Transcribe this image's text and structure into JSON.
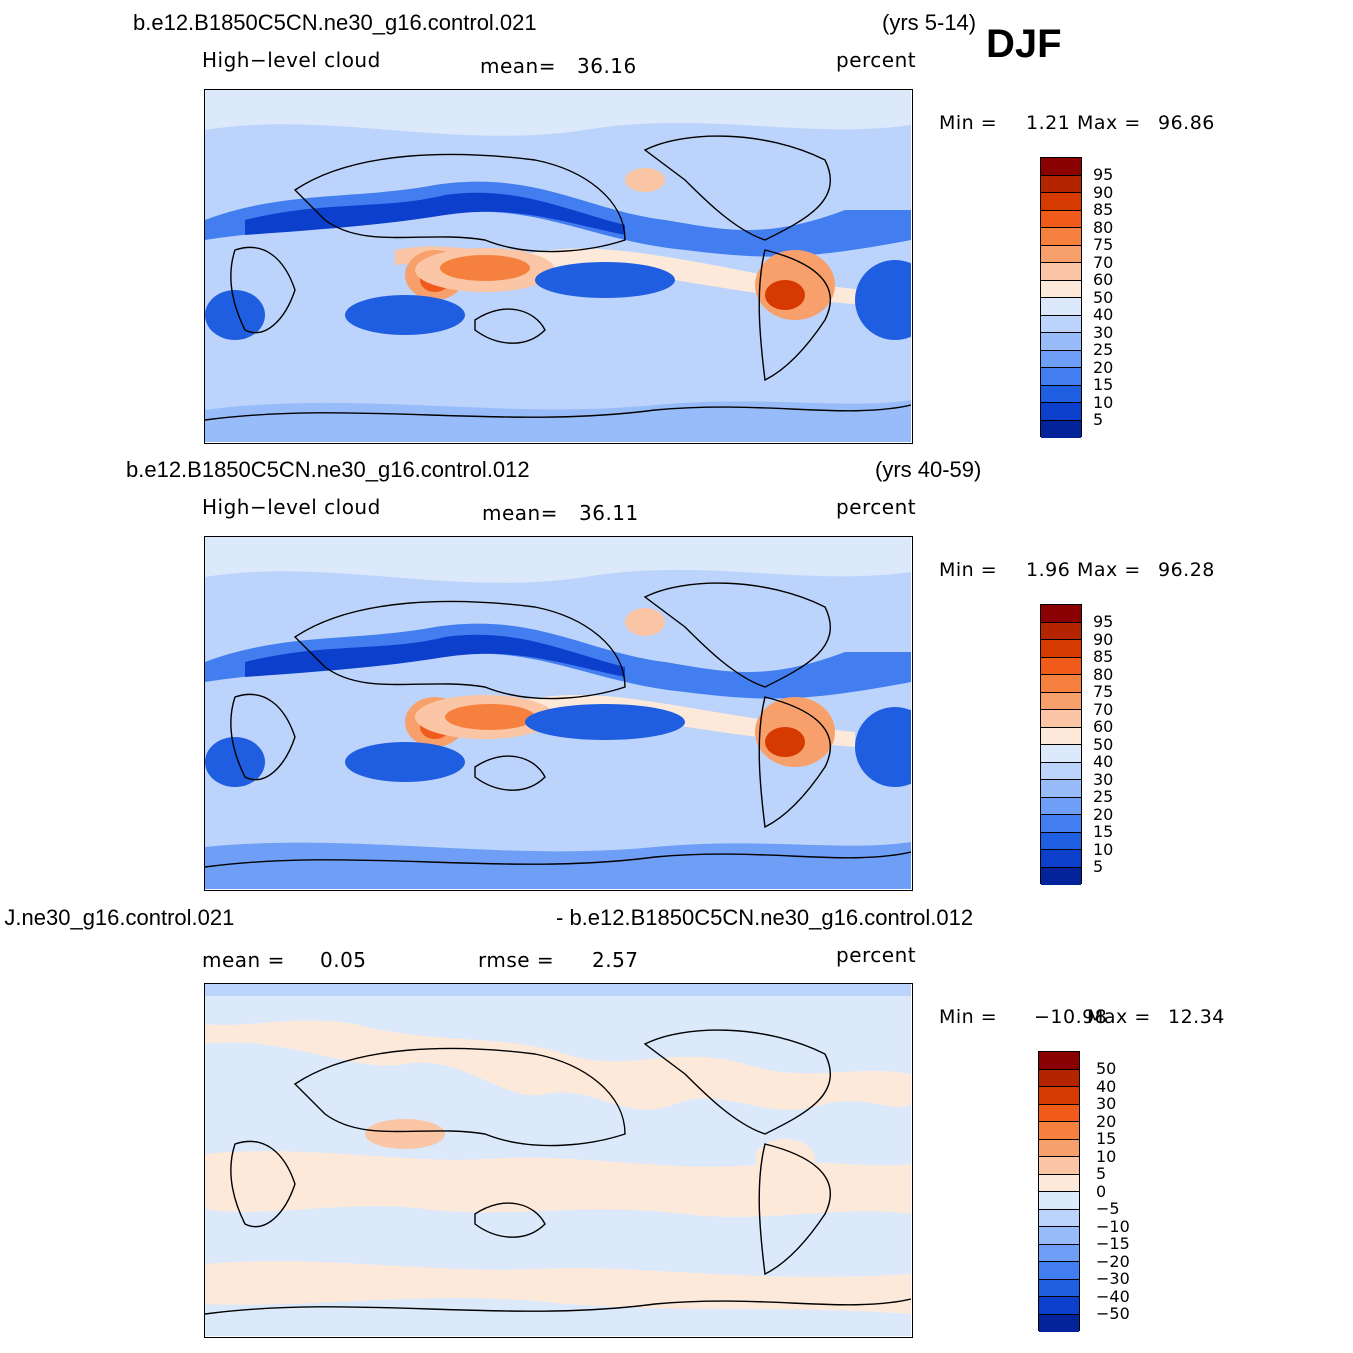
{
  "season": "DJF",
  "panels": [
    {
      "case_left": "b.e12.B1850C5CN.ne30_g16.control.021",
      "case_right": "(yrs 5-14)",
      "variable": "High−level  cloud",
      "stat1_label": "mean=",
      "stat1_value": "36.16",
      "stat2_label": "",
      "stat2_value": "",
      "units": "percent",
      "min_label": "Min  =",
      "min_value": "1.21",
      "max_label": "Max  =",
      "max_value": "96.86",
      "levels": [
        "95",
        "90",
        "85",
        "80",
        "75",
        "70",
        "60",
        "50",
        "40",
        "30",
        "25",
        "20",
        "15",
        "10",
        "5"
      ],
      "colors": [
        "#8b0000",
        "#b52400",
        "#d63a00",
        "#f05a1a",
        "#f6803e",
        "#f8a06c",
        "#fbc6a6",
        "#fde9da",
        "#dce9fb",
        "#bcd4fb",
        "#98bcfa",
        "#6f9ef6",
        "#437ef0",
        "#1f5ee0",
        "#0c3fcc",
        "#03239a"
      ]
    },
    {
      "case_left": "b.e12.B1850C5CN.ne30_g16.control.012",
      "case_right": "(yrs 40-59)",
      "variable": "High−level  cloud",
      "stat1_label": "mean=",
      "stat1_value": "36.11",
      "stat2_label": "",
      "stat2_value": "",
      "units": "percent",
      "min_label": "Min  =",
      "min_value": "1.96",
      "max_label": "Max  =",
      "max_value": "96.28",
      "levels": [
        "95",
        "90",
        "85",
        "80",
        "75",
        "70",
        "60",
        "50",
        "40",
        "30",
        "25",
        "20",
        "15",
        "10",
        "5"
      ],
      "colors": [
        "#8b0000",
        "#b52400",
        "#d63a00",
        "#f05a1a",
        "#f6803e",
        "#f8a06c",
        "#fbc6a6",
        "#fde9da",
        "#dce9fb",
        "#bcd4fb",
        "#98bcfa",
        "#6f9ef6",
        "#437ef0",
        "#1f5ee0",
        "#0c3fcc",
        "#03239a"
      ]
    },
    {
      "case_left": " J.ne30_g16.control.021",
      "case_right": "- b.e12.B1850C5CN.ne30_g16.control.012",
      "variable": "",
      "stat1_label": "mean  =",
      "stat1_value": "0.05",
      "stat2_label": "rmse  =",
      "stat2_value": "2.57",
      "units": "percent",
      "min_label": "Min  =",
      "min_value": "−10.98",
      "max_label": "Max  =",
      "max_value": "12.34",
      "levels": [
        "50",
        "40",
        "30",
        "20",
        "15",
        "10",
        "5",
        "0",
        "−5",
        "−10",
        "−15",
        "−20",
        "−30",
        "−40",
        "−50"
      ],
      "colors": [
        "#8b0000",
        "#b52400",
        "#d63a00",
        "#f05a1a",
        "#f6803e",
        "#f8a06c",
        "#fbc6a6",
        "#fde9da",
        "#dce9fb",
        "#bcd4fb",
        "#98bcfa",
        "#6f9ef6",
        "#437ef0",
        "#1f5ee0",
        "#0c3fcc",
        "#03239a"
      ]
    }
  ]
}
